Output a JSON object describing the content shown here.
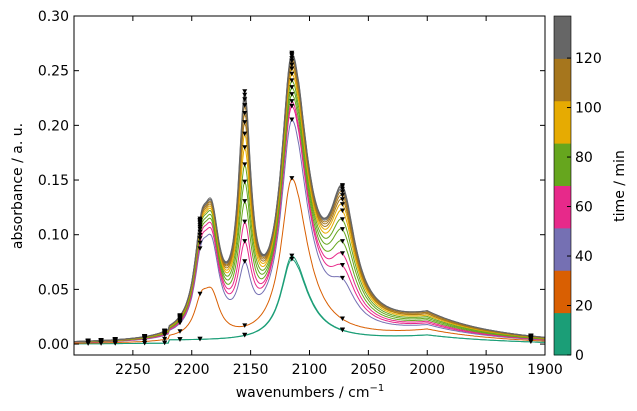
{
  "chart_data": {
    "type": "line",
    "xlabel": "wavenumbers / cm",
    "xlabel_superscript": "−1",
    "ylabel": "absorbance / a. u.",
    "x_reversed": true,
    "xlim": [
      2300,
      1900
    ],
    "ylim": [
      -0.01,
      0.3
    ],
    "xticks": [
      2250,
      2200,
      2150,
      2100,
      2050,
      2000,
      1950,
      1900
    ],
    "xtick_labels": [
      "2250",
      "2200",
      "2150",
      "2100",
      "2050",
      "2000",
      "1950",
      "1900"
    ],
    "yticks": [
      0.0,
      0.05,
      0.1,
      0.15,
      0.2,
      0.25,
      0.3
    ],
    "ytick_labels": [
      "0.00",
      "0.05",
      "0.10",
      "0.15",
      "0.20",
      "0.25",
      "0.30"
    ],
    "grid": false,
    "colorbar": {
      "label": "time / min",
      "range": [
        0,
        137
      ],
      "ticks": [
        0,
        20,
        40,
        60,
        80,
        100,
        120
      ],
      "tick_labels": [
        "0",
        "20",
        "40",
        "60",
        "80",
        "100",
        "120"
      ],
      "colors": [
        "#1b9e77",
        "#d95f02",
        "#7570b3",
        "#e7298a",
        "#66a61e",
        "#e6ab02",
        "#a6761d",
        "#666666"
      ]
    },
    "curve_colors_by_time": {
      "0": "#1b9e77",
      "20": "#d95f02",
      "40": "#7570b3",
      "60": "#e7298a",
      "80": "#66a61e",
      "100": "#e6ab02",
      "120": "#a6761d",
      "137": "#666666"
    },
    "peak_positions": [
      2193,
      2184,
      2170,
      2155,
      2115,
      2072
    ],
    "series": [
      {
        "time": 0,
        "peaks": [
          0.0,
          0.0,
          0.0,
          0.0,
          0.075,
          0.0
        ],
        "baseline_2000": 0.006
      },
      {
        "time": 3,
        "peaks": [
          0.0,
          0.0,
          0.0,
          0.0,
          0.078,
          0.0
        ],
        "baseline_2000": 0.006
      },
      {
        "time": 18,
        "peaks": [
          0.036,
          0.0,
          0.0,
          0.0,
          0.148,
          0.0
        ],
        "baseline_2000": 0.01
      },
      {
        "time": 50,
        "peaks": [
          0.071,
          0.0,
          0.048,
          0.051,
          0.197,
          0.03
        ],
        "baseline_2000": 0.012
      },
      {
        "time": 56,
        "peaks": [
          0.075,
          0.0,
          0.06,
          0.068,
          0.208,
          0.04
        ],
        "baseline_2000": 0.013
      },
      {
        "time": 63,
        "peaks": [
          0.078,
          0.0,
          0.062,
          0.085,
          0.211,
          0.05
        ],
        "baseline_2000": 0.014
      },
      {
        "time": 69,
        "peaks": [
          0.08,
          0.0,
          0.063,
          0.103,
          0.216,
          0.06
        ],
        "baseline_2000": 0.015
      },
      {
        "time": 75,
        "peaks": [
          0.082,
          0.0,
          0.064,
          0.12,
          0.221,
          0.07
        ],
        "baseline_2000": 0.016
      },
      {
        "time": 82,
        "peaks": [
          0.084,
          0.0,
          0.065,
          0.135,
          0.226,
          0.078
        ],
        "baseline_2000": 0.017
      },
      {
        "time": 89,
        "peaks": [
          0.085,
          0.0,
          0.066,
          0.15,
          0.231,
          0.085
        ],
        "baseline_2000": 0.018
      },
      {
        "time": 96,
        "peaks": [
          0.086,
          0.0,
          0.067,
          0.162,
          0.235,
          0.09
        ],
        "baseline_2000": 0.019
      },
      {
        "time": 103,
        "peaks": [
          0.087,
          0.0,
          0.068,
          0.172,
          0.238,
          0.094
        ],
        "baseline_2000": 0.019
      },
      {
        "time": 110,
        "peaks": [
          0.088,
          0.0,
          0.069,
          0.18,
          0.241,
          0.097
        ],
        "baseline_2000": 0.02
      },
      {
        "time": 117,
        "peaks": [
          0.088,
          0.0,
          0.07,
          0.187,
          0.243,
          0.1
        ],
        "baseline_2000": 0.02
      },
      {
        "time": 124,
        "peaks": [
          0.089,
          0.0,
          0.071,
          0.192,
          0.245,
          0.102
        ],
        "baseline_2000": 0.021
      },
      {
        "time": 131,
        "peaks": [
          0.089,
          0.0,
          0.071,
          0.196,
          0.246,
          0.104
        ],
        "baseline_2000": 0.021
      },
      {
        "time": 137,
        "peaks": [
          0.09,
          0.0,
          0.072,
          0.199,
          0.247,
          0.105
        ],
        "baseline_2000": 0.021
      }
    ]
  }
}
